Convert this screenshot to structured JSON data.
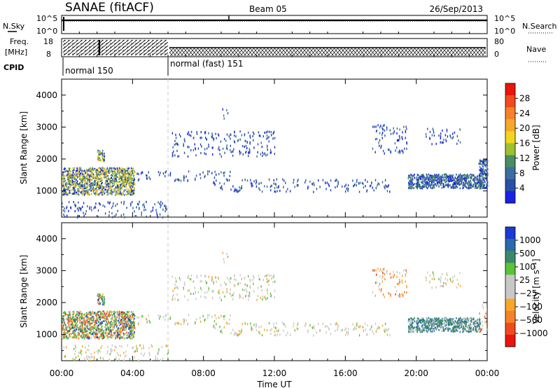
{
  "header": {
    "station": "SANAE (fitACF)",
    "beam": "Beam 05",
    "date": "26/Sep/2013"
  },
  "status_panels": {
    "nsky_label": "N.Sky",
    "nsearch_label": "N.Search",
    "noise_ticks": [
      "10^5",
      "10^0"
    ],
    "freq_label_line1": "Freq.",
    "freq_label_line2": "[MHz]",
    "freq_ticks": [
      "18",
      "8"
    ],
    "nave_label": "Nave",
    "nave_ticks": [
      "80",
      "0"
    ],
    "cpid_label": "CPID",
    "cpid_segments": [
      {
        "label": "normal 150",
        "start_hour": 0,
        "end_hour": 6
      },
      {
        "label": "normal (fast) 151",
        "start_hour": 6,
        "end_hour": 24
      }
    ]
  },
  "x_axis": {
    "label": "Time UT",
    "ticks": [
      "00:00",
      "04:00",
      "08:00",
      "12:00",
      "16:00",
      "20:00",
      "00:00"
    ]
  },
  "chart_data": [
    {
      "type": "heatmap",
      "title": "Power",
      "ylabel": "Slant Range [km]",
      "xlabel": "",
      "xlim_hours": [
        0,
        24
      ],
      "ylim": [
        180,
        4500
      ],
      "y_ticks": [
        1000,
        2000,
        3000,
        4000
      ],
      "colorbar": {
        "label": "Power [dB]",
        "tick_labels": [
          "28",
          "24",
          "20",
          "16",
          "12",
          "8",
          "4"
        ],
        "tick_values": [
          28,
          24,
          20,
          16,
          12,
          8,
          4
        ],
        "colors": [
          "#e8150d",
          "#f04b1f",
          "#f5822a",
          "#f7a82a",
          "#f2d51e",
          "#9cc12e",
          "#4a8c63",
          "#3a6e9c",
          "#2a4fa8",
          "#1a21e3"
        ]
      },
      "echo_regions": [
        {
          "t0": 0.0,
          "t1": 4.1,
          "r0": 900,
          "r1": 1750,
          "level": "high"
        },
        {
          "t0": 2.0,
          "t1": 2.4,
          "r0": 1950,
          "r1": 2300,
          "level": "high"
        },
        {
          "t0": 4.2,
          "t1": 9.5,
          "r0": 1350,
          "r1": 1650,
          "level": "low"
        },
        {
          "t0": 6.2,
          "t1": 12.0,
          "r0": 2100,
          "r1": 2900,
          "level": "low"
        },
        {
          "t0": 9.0,
          "t1": 9.4,
          "r0": 3300,
          "r1": 3600,
          "level": "low"
        },
        {
          "t0": 8.5,
          "t1": 18.5,
          "r0": 1000,
          "r1": 1400,
          "level": "low"
        },
        {
          "t0": 17.5,
          "t1": 19.5,
          "r0": 2200,
          "r1": 3100,
          "level": "low"
        },
        {
          "t0": 19.5,
          "t1": 23.6,
          "r0": 1100,
          "r1": 1550,
          "level": "mid"
        },
        {
          "t0": 20.5,
          "t1": 22.5,
          "r0": 2500,
          "r1": 3000,
          "level": "low"
        },
        {
          "t0": 23.5,
          "t1": 24.0,
          "r0": 1100,
          "r1": 2000,
          "level": "mid"
        },
        {
          "t0": 0.0,
          "t1": 6.0,
          "r0": 200,
          "r1": 700,
          "level": "low"
        }
      ]
    },
    {
      "type": "heatmap",
      "title": "Velocity",
      "ylabel": "Slant Range [km]",
      "xlabel": "Time UT",
      "xlim_hours": [
        0,
        24
      ],
      "ylim": [
        180,
        4500
      ],
      "y_ticks": [
        1000,
        2000,
        3000,
        4000
      ],
      "colorbar": {
        "label": "Velocity [m s⁻¹]",
        "tick_labels": [
          "1000",
          "500",
          "100",
          "25",
          "−25",
          "−100",
          "−500",
          "−1000"
        ],
        "tick_values": [
          1000,
          500,
          100,
          25,
          -25,
          -100,
          -500,
          -1000
        ],
        "colors": [
          "#1a3ad6",
          "#2a6aa8",
          "#3a8a6a",
          "#5cc23a",
          "#c8c8c8",
          "#c8c8c8",
          "#f7a82a",
          "#f5822a",
          "#f04b1f",
          "#e8150d"
        ]
      },
      "echo_regions": [
        {
          "t0": 0.0,
          "t1": 4.1,
          "r0": 900,
          "r1": 1750,
          "level": "mixed"
        },
        {
          "t0": 2.0,
          "t1": 2.4,
          "r0": 1950,
          "r1": 2300,
          "level": "mixed"
        },
        {
          "t0": 4.2,
          "t1": 9.5,
          "r0": 1350,
          "r1": 1650,
          "level": "neutral"
        },
        {
          "t0": 6.2,
          "t1": 12.0,
          "r0": 2100,
          "r1": 2900,
          "level": "neutral"
        },
        {
          "t0": 9.0,
          "t1": 9.4,
          "r0": 3300,
          "r1": 3600,
          "level": "away"
        },
        {
          "t0": 8.5,
          "t1": 18.5,
          "r0": 1000,
          "r1": 1400,
          "level": "neutral"
        },
        {
          "t0": 17.5,
          "t1": 19.5,
          "r0": 2200,
          "r1": 3100,
          "level": "away"
        },
        {
          "t0": 19.5,
          "t1": 23.6,
          "r0": 1100,
          "r1": 1550,
          "level": "toward"
        },
        {
          "t0": 20.5,
          "t1": 22.5,
          "r0": 2500,
          "r1": 3000,
          "level": "neutral"
        },
        {
          "t0": 23.5,
          "t1": 24.0,
          "r0": 1100,
          "r1": 2000,
          "level": "away"
        },
        {
          "t0": 0.0,
          "t1": 6.0,
          "r0": 200,
          "r1": 700,
          "level": "neutral"
        }
      ]
    }
  ]
}
